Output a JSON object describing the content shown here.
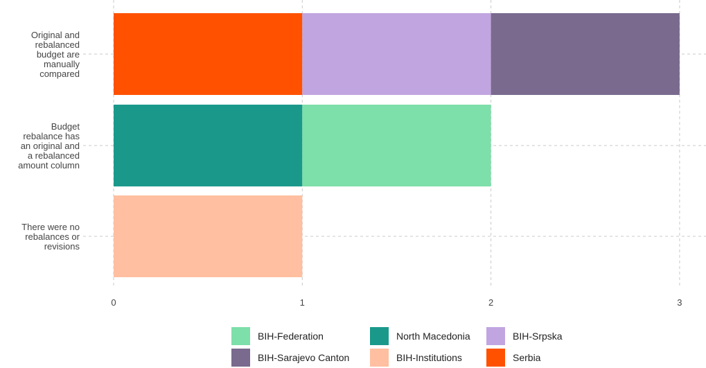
{
  "chart_data": {
    "type": "bar",
    "orientation": "horizontal",
    "stacked": true,
    "categories": [
      "Original and rebalanced budget are manually compared",
      "Budget rebalance has an original and a rebalanced amount column",
      "There were no rebalances or revisions"
    ],
    "category_lines": [
      [
        "Original and",
        "rebalanced",
        "budget are",
        "manually",
        "compared"
      ],
      [
        "Budget",
        "rebalance has",
        "an original and",
        "a rebalanced",
        "amount column"
      ],
      [
        "There were no",
        "rebalances or",
        "revisions"
      ]
    ],
    "stacks": [
      [
        {
          "name": "Serbia",
          "value": 1
        },
        {
          "name": "BIH-Srpska",
          "value": 1
        },
        {
          "name": "BIH-Sarajevo Canton",
          "value": 1
        }
      ],
      [
        {
          "name": "North Macedonia",
          "value": 1
        },
        {
          "name": "BIH-Federation",
          "value": 1
        }
      ],
      [
        {
          "name": "BIH-Institutions",
          "value": 1
        }
      ]
    ],
    "xlim": [
      0,
      3
    ],
    "xticks": [
      "0",
      "1",
      "2",
      "3"
    ],
    "grid": true,
    "legend_position": "bottom",
    "legend": [
      {
        "name": "BIH-Federation",
        "color": "#7ddfa9"
      },
      {
        "name": "North Macedonia",
        "color": "#1a998b"
      },
      {
        "name": "BIH-Srpska",
        "color": "#c1a5e0"
      },
      {
        "name": "BIH-Sarajevo Canton",
        "color": "#7a6a8e"
      },
      {
        "name": "BIH-Institutions",
        "color": "#ffbfa0"
      },
      {
        "name": "Serbia",
        "color": "#ff5100"
      }
    ]
  }
}
